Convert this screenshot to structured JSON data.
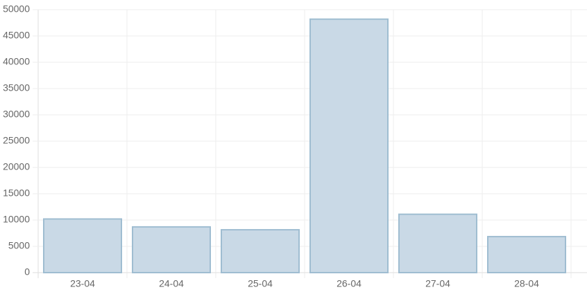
{
  "chart_data": {
    "type": "bar",
    "categories": [
      "23-04",
      "24-04",
      "25-04",
      "26-04",
      "27-04",
      "28-04"
    ],
    "values": [
      10200,
      8700,
      8150,
      48200,
      11100,
      6850
    ],
    "color": "#c9d9e6",
    "border_color": "#9fbdd1",
    "ylim": [
      0,
      50000
    ],
    "yticks": [
      0,
      5000,
      10000,
      15000,
      20000,
      25000,
      30000,
      35000,
      40000,
      45000,
      50000
    ],
    "grid": true
  }
}
